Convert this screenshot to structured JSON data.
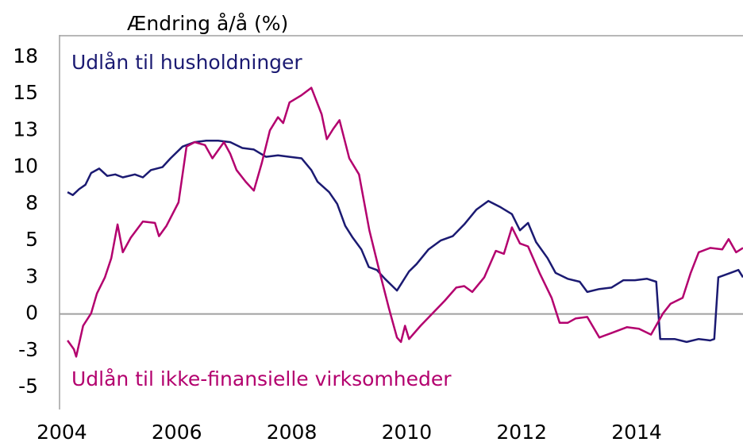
{
  "chart_data": {
    "type": "line",
    "title": "Ændring å/å (%)",
    "xlim": [
      2003.96,
      2015.85
    ],
    "xticks": [
      2004,
      2006,
      2008,
      2010,
      2012,
      2014
    ],
    "ylim": [
      -6.5,
      19
    ],
    "yticks": [
      {
        "value": 17.5,
        "label": "18"
      },
      15,
      {
        "value": 12.5,
        "label": "13"
      },
      10,
      {
        "value": 7.5,
        "label": "8"
      },
      5,
      {
        "value": 2.5,
        "label": "3"
      },
      0,
      {
        "value": -2.5,
        "label": "-3"
      },
      -5
    ],
    "zero_line": true,
    "series": [
      {
        "name": "Udlån til husholdninger",
        "color": "#1b1a72",
        "x": [
          2004.1,
          2004.19,
          2004.3,
          2004.41,
          2004.51,
          2004.65,
          2004.79,
          2004.93,
          2005.06,
          2005.27,
          2005.41,
          2005.55,
          2005.75,
          2005.89,
          2006.1,
          2006.31,
          2006.51,
          2006.72,
          2006.93,
          2007.14,
          2007.34,
          2007.55,
          2007.76,
          2007.96,
          2008.17,
          2008.34,
          2008.45,
          2008.65,
          2008.79,
          2008.93,
          2009.06,
          2009.21,
          2009.34,
          2009.48,
          2009.62,
          2009.83,
          2010.04,
          2010.17,
          2010.38,
          2010.59,
          2010.8,
          2011.0,
          2011.21,
          2011.42,
          2011.62,
          2011.83,
          2011.97,
          2012.11,
          2012.25,
          2012.45,
          2012.59,
          2012.8,
          2013.01,
          2013.14,
          2013.35,
          2013.56,
          2013.77,
          2013.97,
          2014.18,
          2014.34,
          2014.41,
          2014.66,
          2014.87,
          2015.08,
          2015.28,
          2015.35,
          2015.42,
          2015.63,
          2015.77,
          2015.85
        ],
        "values": [
          8.3,
          8.1,
          8.5,
          8.8,
          9.6,
          9.9,
          9.4,
          9.5,
          9.3,
          9.5,
          9.3,
          9.8,
          10.0,
          10.6,
          11.4,
          11.7,
          11.8,
          11.8,
          11.7,
          11.3,
          11.2,
          10.7,
          10.8,
          10.7,
          10.6,
          9.8,
          9.0,
          8.3,
          7.5,
          6.0,
          5.2,
          4.4,
          3.2,
          3.0,
          2.4,
          1.6,
          2.9,
          3.4,
          4.4,
          5.0,
          5.3,
          6.1,
          7.1,
          7.7,
          7.3,
          6.8,
          5.7,
          6.2,
          4.9,
          3.8,
          2.8,
          2.4,
          2.2,
          1.5,
          1.7,
          1.8,
          2.3,
          2.3,
          2.4,
          2.2,
          -1.7,
          -1.7,
          -1.9,
          -1.7,
          -1.8,
          -1.7,
          2.5,
          2.8,
          3.0,
          2.5
        ]
      },
      {
        "name": "Udlån til ikke-finansielle virksomheder",
        "color": "#b3006e",
        "x": [
          2004.1,
          2004.21,
          2004.25,
          2004.37,
          2004.51,
          2004.61,
          2004.75,
          2004.86,
          2004.97,
          2005.06,
          2005.2,
          2005.41,
          2005.62,
          2005.69,
          2005.82,
          2006.03,
          2006.17,
          2006.31,
          2006.49,
          2006.62,
          2006.82,
          2006.93,
          2007.04,
          2007.2,
          2007.34,
          2007.48,
          2007.62,
          2007.76,
          2007.85,
          2007.96,
          2008.17,
          2008.34,
          2008.52,
          2008.61,
          2008.72,
          2008.83,
          2009.0,
          2009.17,
          2009.35,
          2009.52,
          2009.69,
          2009.83,
          2009.9,
          2009.97,
          2010.04,
          2010.24,
          2010.45,
          2010.66,
          2010.86,
          2011.0,
          2011.14,
          2011.35,
          2011.55,
          2011.69,
          2011.83,
          2011.97,
          2012.11,
          2012.31,
          2012.52,
          2012.66,
          2012.8,
          2012.94,
          2013.14,
          2013.35,
          2013.56,
          2013.83,
          2014.04,
          2014.25,
          2014.46,
          2014.59,
          2014.8,
          2014.94,
          2015.08,
          2015.28,
          2015.49,
          2015.6,
          2015.73,
          2015.85
        ],
        "values": [
          -1.8,
          -2.4,
          -2.9,
          -0.8,
          0.05,
          1.4,
          2.5,
          3.8,
          6.1,
          4.2,
          5.2,
          6.3,
          6.2,
          5.3,
          6.0,
          7.6,
          11.4,
          11.7,
          11.5,
          10.6,
          11.7,
          10.9,
          9.8,
          9.0,
          8.4,
          10.3,
          12.5,
          13.4,
          13.0,
          14.4,
          14.9,
          15.4,
          13.6,
          11.9,
          12.6,
          13.2,
          10.6,
          9.5,
          5.7,
          3.0,
          0.4,
          -1.6,
          -1.9,
          -0.8,
          -1.7,
          -0.8,
          0.05,
          0.9,
          1.8,
          1.9,
          1.5,
          2.5,
          4.3,
          4.1,
          5.9,
          4.8,
          4.6,
          2.8,
          1.1,
          -0.6,
          -0.6,
          -0.3,
          -0.2,
          -1.6,
          -1.3,
          -0.9,
          -1.0,
          -1.4,
          0.05,
          0.7,
          1.1,
          2.8,
          4.2,
          4.5,
          4.4,
          5.1,
          4.2,
          4.5
        ]
      }
    ]
  }
}
